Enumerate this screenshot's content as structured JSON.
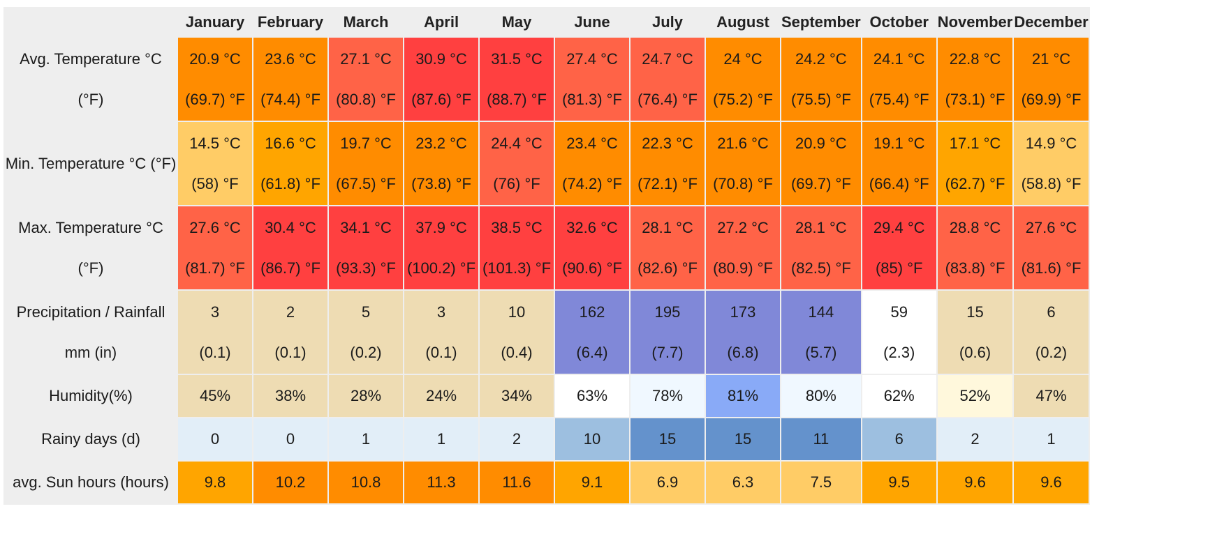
{
  "months": [
    "January",
    "February",
    "March",
    "April",
    "May",
    "June",
    "July",
    "August",
    "September",
    "October",
    "November",
    "December"
  ],
  "rows": [
    {
      "key": "avg_temp",
      "label_lines": [
        "Avg. Temperature °C (°F)"
      ],
      "cls": "r-tall",
      "values": [
        [
          "20.9 °C",
          "(69.7) °F"
        ],
        [
          "23.6 °C",
          "(74.4) °F"
        ],
        [
          "27.1 °C",
          "(80.8) °F"
        ],
        [
          "30.9 °C",
          "(87.6) °F"
        ],
        [
          "31.5 °C",
          "(88.7) °F"
        ],
        [
          "27.4 °C",
          "(81.3) °F"
        ],
        [
          "24.7 °C",
          "(76.4) °F"
        ],
        [
          "24 °C",
          "(75.2) °F"
        ],
        [
          "24.2 °C",
          "(75.5) °F"
        ],
        [
          "24.1 °C",
          "(75.4) °F"
        ],
        [
          "22.8 °C",
          "(73.1) °F"
        ],
        [
          "21 °C",
          "(69.9) °F"
        ]
      ],
      "colors": [
        "#ff8c00",
        "#ff8c00",
        "#ff6347",
        "#ff4040",
        "#ff4040",
        "#ff6347",
        "#ff6347",
        "#ff8c00",
        "#ff8c00",
        "#ff8c00",
        "#ff8c00",
        "#ff8c00"
      ]
    },
    {
      "key": "min_temp",
      "label_lines": [
        "Min. Temperature °C (°F)"
      ],
      "cls": "r-tall",
      "values": [
        [
          "14.5 °C",
          "(58) °F"
        ],
        [
          "16.6 °C",
          "(61.8) °F"
        ],
        [
          "19.7 °C",
          "(67.5) °F"
        ],
        [
          "23.2 °C",
          "(73.8) °F"
        ],
        [
          "24.4 °C",
          "(76) °F"
        ],
        [
          "23.4 °C",
          "(74.2) °F"
        ],
        [
          "22.3 °C",
          "(72.1) °F"
        ],
        [
          "21.6 °C",
          "(70.8) °F"
        ],
        [
          "20.9 °C",
          "(69.7) °F"
        ],
        [
          "19.1 °C",
          "(66.4) °F"
        ],
        [
          "17.1 °C",
          "(62.7) °F"
        ],
        [
          "14.9 °C",
          "(58.8) °F"
        ]
      ],
      "colors": [
        "#ffcc66",
        "#ffa500",
        "#ff8c00",
        "#ff8c00",
        "#ff6347",
        "#ff8c00",
        "#ff8c00",
        "#ff8c00",
        "#ff8c00",
        "#ff8c00",
        "#ffa500",
        "#ffcc66"
      ]
    },
    {
      "key": "max_temp",
      "label_lines": [
        "Max. Temperature °C",
        "(°F)"
      ],
      "cls": "r-tall",
      "values": [
        [
          "27.6 °C",
          "(81.7) °F"
        ],
        [
          "30.4 °C",
          "(86.7) °F"
        ],
        [
          "34.1 °C",
          "(93.3) °F"
        ],
        [
          "37.9 °C",
          "(100.2) °F"
        ],
        [
          "38.5 °C",
          "(101.3) °F"
        ],
        [
          "32.6 °C",
          "(90.6) °F"
        ],
        [
          "28.1 °C",
          "(82.6) °F"
        ],
        [
          "27.2 °C",
          "(80.9) °F"
        ],
        [
          "28.1 °C",
          "(82.5) °F"
        ],
        [
          "29.4 °C",
          "(85) °F"
        ],
        [
          "28.8 °C",
          "(83.8) °F"
        ],
        [
          "27.6 °C",
          "(81.6) °F"
        ]
      ],
      "colors": [
        "#ff6347",
        "#ff4040",
        "#ff4040",
        "#ff4040",
        "#ff4040",
        "#ff4040",
        "#ff6347",
        "#ff6347",
        "#ff6347",
        "#ff4040",
        "#ff6347",
        "#ff6347"
      ]
    },
    {
      "key": "precip",
      "label_lines": [
        "Precipitation / Rainfall",
        "mm (in)"
      ],
      "cls": "r-tall",
      "values": [
        [
          "3",
          "(0.1)"
        ],
        [
          "2",
          "(0.1)"
        ],
        [
          "5",
          "(0.2)"
        ],
        [
          "3",
          "(0.1)"
        ],
        [
          "10",
          "(0.4)"
        ],
        [
          "162",
          "(6.4)"
        ],
        [
          "195",
          "(7.7)"
        ],
        [
          "173",
          "(6.8)"
        ],
        [
          "144",
          "(5.7)"
        ],
        [
          "59",
          "(2.3)"
        ],
        [
          "15",
          "(0.6)"
        ],
        [
          "6",
          "(0.2)"
        ]
      ],
      "colors": [
        "#eedcb3",
        "#eedcb3",
        "#eedcb3",
        "#eedcb3",
        "#eedcb3",
        "#8088d8",
        "#8088d8",
        "#8088d8",
        "#8088d8",
        "#ffffff",
        "#eedcb3",
        "#eedcb3"
      ]
    },
    {
      "key": "humidity",
      "label_lines": [
        "Humidity(%)"
      ],
      "cls": "r-hum",
      "values": [
        [
          "45%"
        ],
        [
          "38%"
        ],
        [
          "28%"
        ],
        [
          "24%"
        ],
        [
          "34%"
        ],
        [
          "63%"
        ],
        [
          "78%"
        ],
        [
          "81%"
        ],
        [
          "80%"
        ],
        [
          "62%"
        ],
        [
          "52%"
        ],
        [
          "47%"
        ]
      ],
      "colors": [
        "#eedcb3",
        "#eedcb3",
        "#eedcb3",
        "#eedcb3",
        "#eedcb3",
        "#ffffff",
        "#f0f8ff",
        "#89aaf7",
        "#f0f8ff",
        "#ffffff",
        "#fff8dc",
        "#eedcb3"
      ]
    },
    {
      "key": "rainy_days",
      "label_lines": [
        "Rainy days (d)"
      ],
      "cls": "r-rain",
      "values": [
        [
          "0"
        ],
        [
          "0"
        ],
        [
          "1"
        ],
        [
          "1"
        ],
        [
          "2"
        ],
        [
          "10"
        ],
        [
          "15"
        ],
        [
          "15"
        ],
        [
          "11"
        ],
        [
          "6"
        ],
        [
          "2"
        ],
        [
          "1"
        ]
      ],
      "colors": [
        "#e2eef8",
        "#e2eef8",
        "#e2eef8",
        "#e2eef8",
        "#e2eef8",
        "#9dbfe0",
        "#6492cc",
        "#6492cc",
        "#6492cc",
        "#9dbfe0",
        "#e2eef8",
        "#e2eef8"
      ]
    },
    {
      "key": "sun_hours",
      "label_lines": [
        "avg. Sun hours (hours)"
      ],
      "cls": "r-sun",
      "values": [
        [
          "9.8"
        ],
        [
          "10.2"
        ],
        [
          "10.8"
        ],
        [
          "11.3"
        ],
        [
          "11.6"
        ],
        [
          "9.1"
        ],
        [
          "6.9"
        ],
        [
          "6.3"
        ],
        [
          "7.5"
        ],
        [
          "9.5"
        ],
        [
          "9.6"
        ],
        [
          "9.6"
        ]
      ],
      "colors": [
        "#ffa500",
        "#ff8c00",
        "#ff8c00",
        "#ff8c00",
        "#ff8c00",
        "#ffa500",
        "#ffcc66",
        "#ffcc66",
        "#ffcc66",
        "#ffa500",
        "#ffa500",
        "#ffa500"
      ]
    }
  ]
}
